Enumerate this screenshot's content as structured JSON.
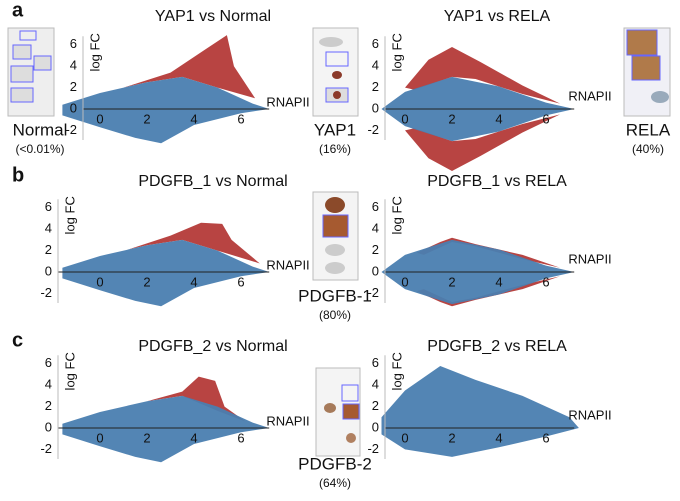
{
  "panels": [
    {
      "label": "a",
      "plots": [
        {
          "title": "YAP1 vs Normal",
          "ylabel": "log FC",
          "yticks": [
            6,
            4,
            2,
            0,
            -2
          ],
          "xticks": [
            0,
            2,
            4,
            6
          ],
          "annotation": "RNAPII"
        },
        {
          "title": "YAP1 vs RELA",
          "ylabel": "log FC",
          "yticks": [
            6,
            4,
            2,
            0,
            -2
          ],
          "xticks": [
            0,
            2,
            4,
            6
          ],
          "annotation": "RNAPII"
        }
      ],
      "samples": [
        {
          "name": "Normal",
          "percent": "(<0.01%)"
        },
        {
          "name": "YAP1",
          "percent": "(16%)"
        },
        {
          "name": "RELA",
          "percent": "(40%)"
        }
      ]
    },
    {
      "label": "b",
      "plots": [
        {
          "title": "PDGFB_1 vs Normal",
          "ylabel": "log FC",
          "yticks": [
            6,
            4,
            2,
            0,
            -2
          ],
          "xticks": [
            0,
            2,
            4,
            6
          ],
          "annotation": "RNAPII"
        },
        {
          "title": "PDGFB_1 vs RELA",
          "ylabel": "log FC",
          "yticks": [
            6,
            4,
            2,
            0,
            -2
          ],
          "xticks": [
            0,
            2,
            4,
            6
          ],
          "annotation": "RNAPII"
        }
      ],
      "samples": [
        {
          "name": "PDGFB-1",
          "percent": "(80%)"
        }
      ]
    },
    {
      "label": "c",
      "plots": [
        {
          "title": "PDGFB_2 vs Normal",
          "ylabel": "log FC",
          "yticks": [
            6,
            4,
            2,
            0,
            -2
          ],
          "xticks": [
            0,
            2,
            4,
            6
          ],
          "annotation": "RNAPII"
        },
        {
          "title": "PDGFB_2 vs RELA",
          "ylabel": "log FC",
          "yticks": [
            6,
            4,
            2,
            0,
            -2
          ],
          "xticks": [
            0,
            2,
            4,
            6
          ],
          "annotation": "RNAPII"
        }
      ],
      "samples": [
        {
          "name": "PDGFB-2",
          "percent": "(64%)"
        }
      ]
    }
  ]
}
